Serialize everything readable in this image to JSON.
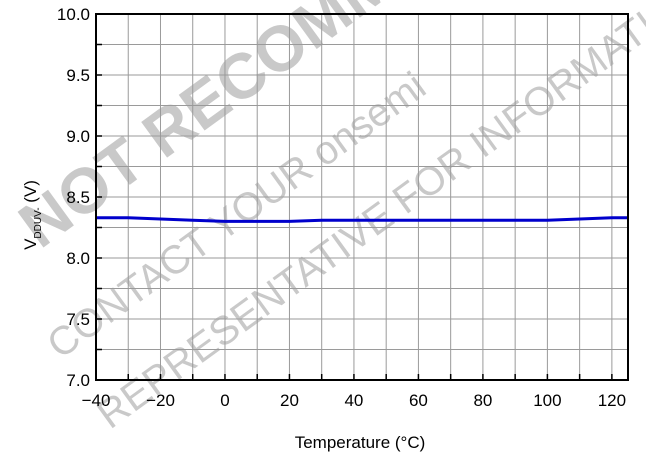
{
  "chart_data": {
    "type": "line",
    "xlabel": "Temperature (°C)",
    "ylabel": "V",
    "ylabel_sub": "DDUV-",
    "ylabel_unit": " (V)",
    "xlim": [
      -40,
      125
    ],
    "ylim": [
      7.0,
      10.0
    ],
    "x_ticks": [
      -40,
      -20,
      0,
      20,
      40,
      60,
      80,
      100,
      120
    ],
    "x_tick_labels": [
      "−40",
      "−20",
      "0",
      "20",
      "40",
      "60",
      "80",
      "100",
      "120"
    ],
    "y_ticks": [
      7.0,
      7.5,
      8.0,
      8.5,
      9.0,
      9.5,
      10.0
    ],
    "y_tick_labels": [
      "7.0",
      "7.5",
      "8.0",
      "8.5",
      "9.0",
      "9.5",
      "10.0"
    ],
    "grid": true,
    "series": [
      {
        "color": "#0000cc",
        "x": [
          -40,
          -30,
          -20,
          -10,
          0,
          10,
          20,
          30,
          40,
          50,
          60,
          70,
          80,
          90,
          100,
          110,
          120,
          125
        ],
        "y": [
          8.33,
          8.33,
          8.32,
          8.31,
          8.3,
          8.3,
          8.3,
          8.31,
          8.31,
          8.31,
          8.31,
          8.31,
          8.31,
          8.31,
          8.31,
          8.32,
          8.33,
          8.33
        ]
      }
    ]
  },
  "watermark": {
    "line1": "NOT RECOMMENDED FOR NEW DESIGN",
    "line2": "CONTACT YOUR onsemi",
    "line3": "REPRESENTATIVE FOR INFORMATION",
    "color": "#b8b8b8"
  }
}
